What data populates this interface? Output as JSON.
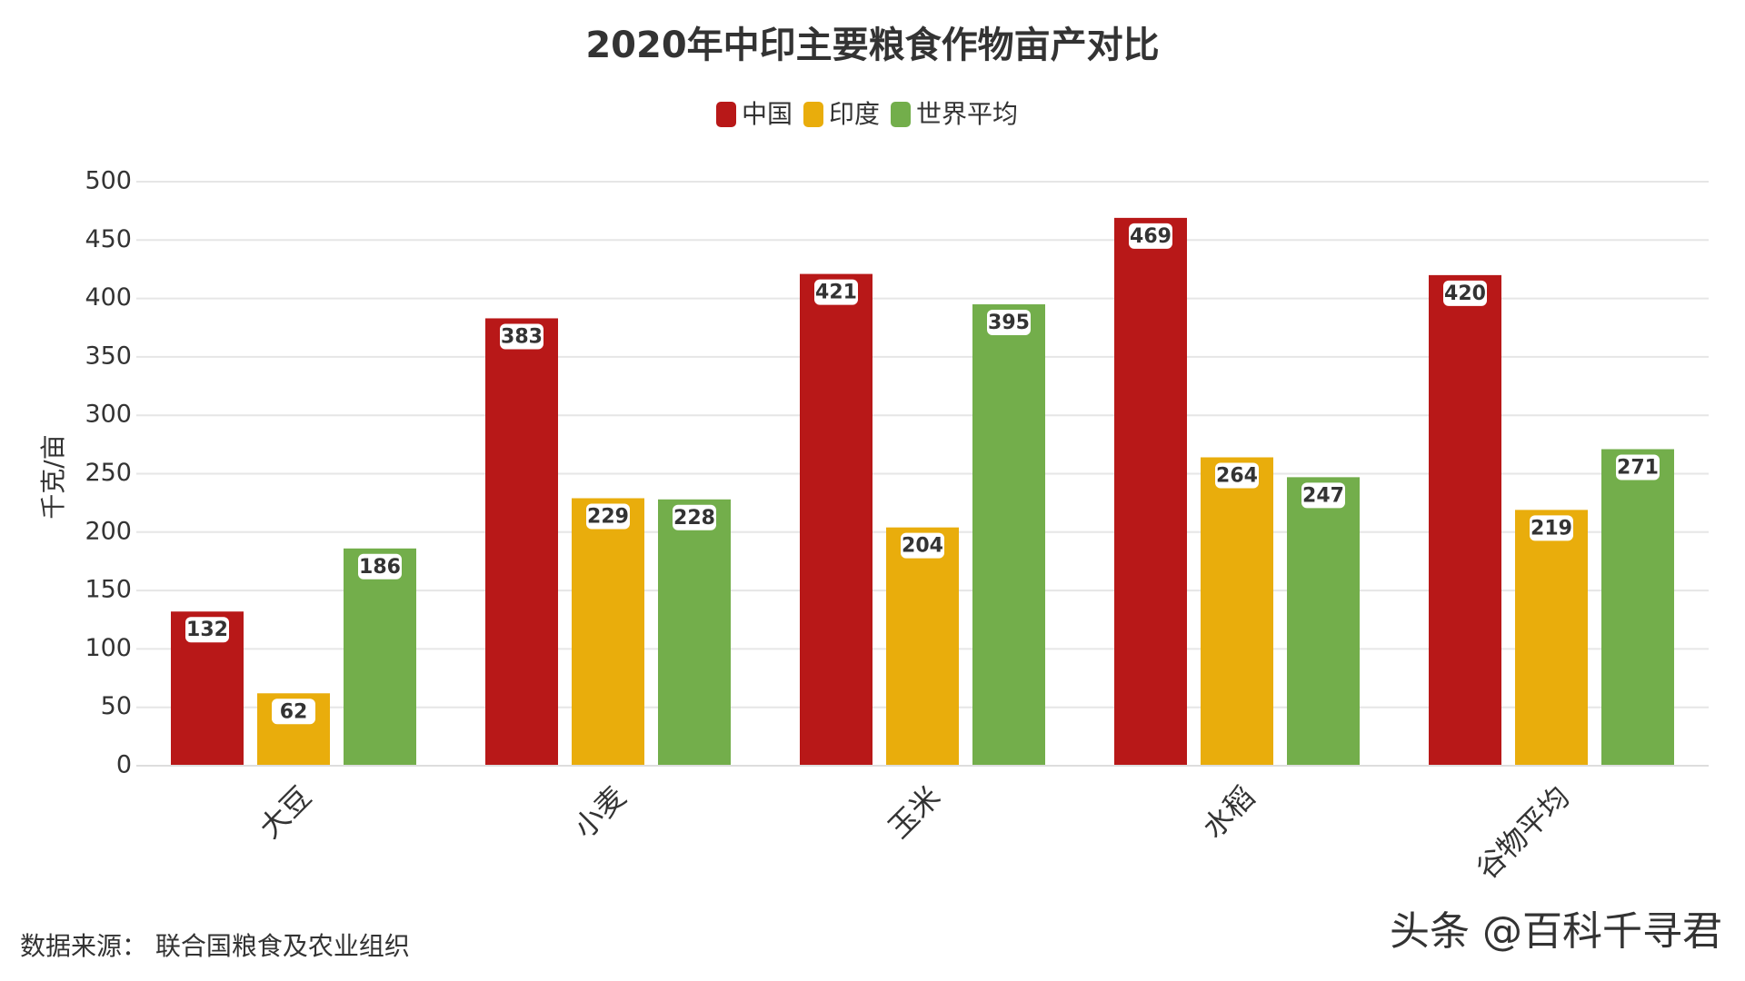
{
  "chart_data": {
    "type": "bar",
    "title": "2020年中印主要粮食作物亩产对比",
    "y_label": "千克/亩",
    "categories": [
      "大豆",
      "小麦",
      "玉米",
      "水稻",
      "谷物平均"
    ],
    "series": [
      {
        "name": "中国",
        "color": "#b81818",
        "values": [
          132,
          383,
          421,
          469,
          420
        ]
      },
      {
        "name": "印度",
        "color": "#e9ad0c",
        "values": [
          62,
          229,
          204,
          264,
          219
        ]
      },
      {
        "name": "世界平均",
        "color": "#73ae4b",
        "values": [
          186,
          228,
          395,
          247,
          271
        ]
      }
    ],
    "ylim": [
      0,
      500
    ],
    "yticks": [
      0,
      50,
      100,
      150,
      200,
      250,
      300,
      350,
      400,
      450,
      500
    ],
    "grid": true,
    "legend": "top",
    "source": "数据来源： 联合国粮食及农业组织",
    "watermark": "头条 @百科千寻君"
  }
}
